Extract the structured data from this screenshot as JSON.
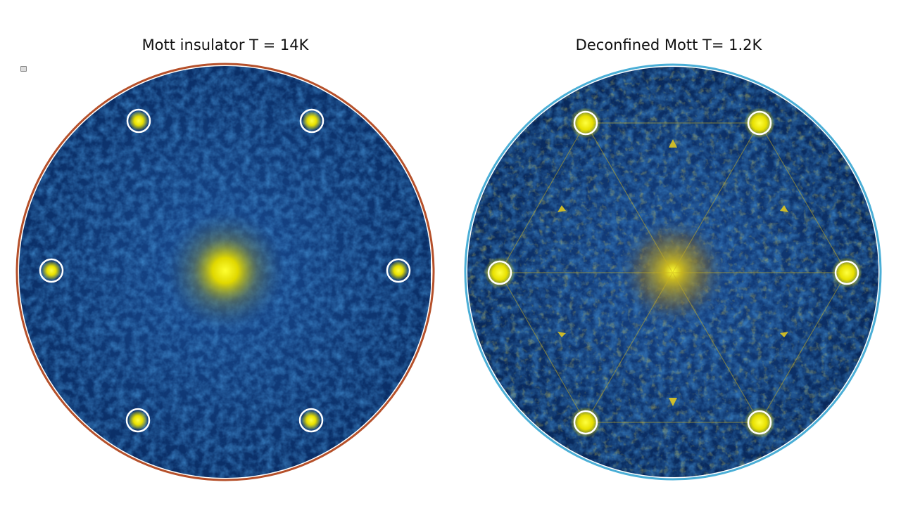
{
  "slide": {
    "left_panel": {
      "title": "Mott insulator T = 14K",
      "border_color": "#b5502a",
      "image_type": "FFT map, weak diffuse background",
      "peak_count": 6
    },
    "right_panel": {
      "title": "Deconfined Mott T= 1.2K",
      "border_color": "#4aaed6",
      "image_type": "FFT map, with star-like satellite features",
      "peak_count": 6
    },
    "colors": {
      "background_blue": "#0b3a7a",
      "peak_yellow": "#f2f000",
      "marker_white": "#ffffff"
    },
    "icons": {
      "corner_icon": "image-placeholder-icon"
    }
  }
}
